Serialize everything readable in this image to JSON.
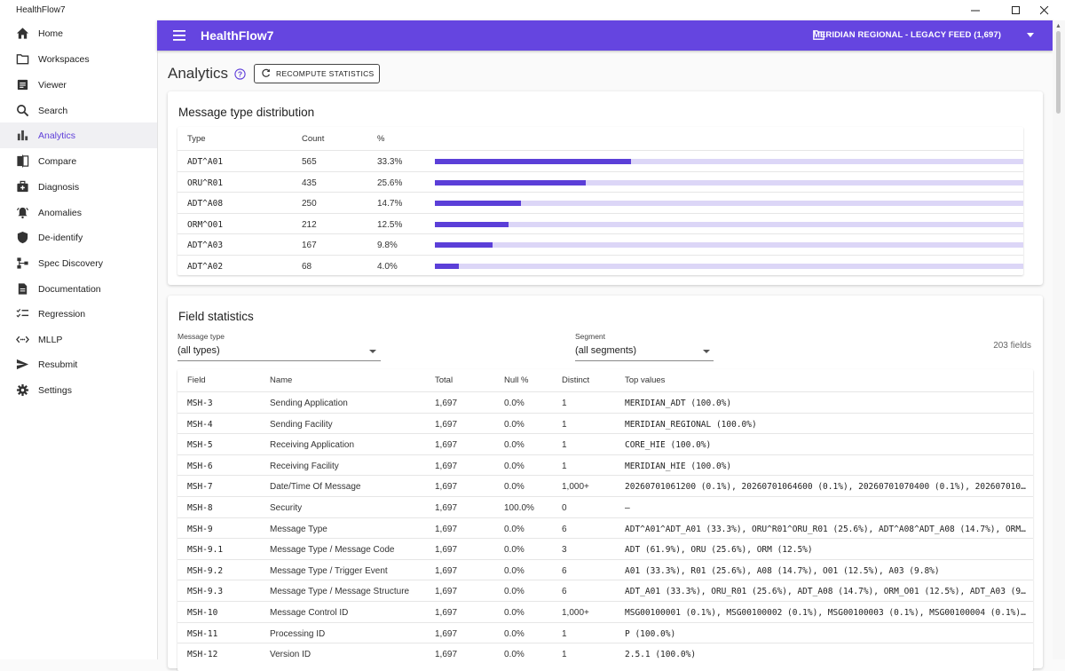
{
  "window": {
    "title": "HealthFlow7",
    "controls": [
      "minimize",
      "maximize",
      "close"
    ]
  },
  "sidebar": {
    "items": [
      {
        "label": "Home",
        "icon": "home-icon"
      },
      {
        "label": "Workspaces",
        "icon": "folder-icon"
      },
      {
        "label": "Viewer",
        "icon": "document-icon"
      },
      {
        "label": "Search",
        "icon": "search-icon"
      },
      {
        "label": "Analytics",
        "icon": "bar-chart-icon",
        "active": true
      },
      {
        "label": "Compare",
        "icon": "compare-icon"
      },
      {
        "label": "Diagnosis",
        "icon": "medical-kit-icon"
      },
      {
        "label": "Anomalies",
        "icon": "alarm-icon"
      },
      {
        "label": "De-identify",
        "icon": "shield-icon"
      },
      {
        "label": "Spec Discovery",
        "icon": "schema-icon"
      },
      {
        "label": "Documentation",
        "icon": "description-icon"
      },
      {
        "label": "Regression",
        "icon": "checklist-icon"
      },
      {
        "label": "MLLP",
        "icon": "code-arrows-icon"
      },
      {
        "label": "Resubmit",
        "icon": "send-icon"
      },
      {
        "label": "Settings",
        "icon": "gear-icon"
      }
    ]
  },
  "appbar": {
    "title": "HealthFlow7",
    "workspace": "MERIDIAN REGIONAL - LEGACY FEED (1,697)"
  },
  "page": {
    "title": "Analytics",
    "recompute_label": "RECOMPUTE STATISTICS"
  },
  "distribution": {
    "title": "Message type distribution",
    "headers": [
      "Type",
      "Count",
      "%"
    ],
    "rows": [
      {
        "type": "ADT^A01",
        "count": "565",
        "pct": "33.3%",
        "fraction": 0.333
      },
      {
        "type": "ORU^R01",
        "count": "435",
        "pct": "25.6%",
        "fraction": 0.256
      },
      {
        "type": "ADT^A08",
        "count": "250",
        "pct": "14.7%",
        "fraction": 0.147
      },
      {
        "type": "ORM^O01",
        "count": "212",
        "pct": "12.5%",
        "fraction": 0.125
      },
      {
        "type": "ADT^A03",
        "count": "167",
        "pct": "9.8%",
        "fraction": 0.098
      },
      {
        "type": "ADT^A02",
        "count": "68",
        "pct": "4.0%",
        "fraction": 0.04
      }
    ],
    "colors": {
      "fill": "#5b3fd8",
      "track": "#dcd6f7"
    }
  },
  "field_stats": {
    "title": "Field statistics",
    "message_type_label": "Message type",
    "message_type_value": "(all types)",
    "segment_label": "Segment",
    "segment_value": "(all segments)",
    "field_count": "203 fields",
    "headers": [
      "Field",
      "Name",
      "Total",
      "Null %",
      "Distinct",
      "Top values"
    ],
    "rows": [
      {
        "field": "MSH-3",
        "name": "Sending Application",
        "total": "1,697",
        "null": "0.0%",
        "distinct": "1",
        "top": "MERIDIAN_ADT (100.0%)"
      },
      {
        "field": "MSH-4",
        "name": "Sending Facility",
        "total": "1,697",
        "null": "0.0%",
        "distinct": "1",
        "top": "MERIDIAN_REGIONAL (100.0%)"
      },
      {
        "field": "MSH-5",
        "name": "Receiving Application",
        "total": "1,697",
        "null": "0.0%",
        "distinct": "1",
        "top": "CORE_HIE (100.0%)"
      },
      {
        "field": "MSH-6",
        "name": "Receiving Facility",
        "total": "1,697",
        "null": "0.0%",
        "distinct": "1",
        "top": "MERIDIAN_HIE (100.0%)"
      },
      {
        "field": "MSH-7",
        "name": "Date/Time Of Message",
        "total": "1,697",
        "null": "0.0%",
        "distinct": "1,000+",
        "top": "20260701061200 (0.1%), 20260701064600 (0.1%), 20260701070400 (0.1%), 2026070107…"
      },
      {
        "field": "MSH-8",
        "name": "Security",
        "total": "1,697",
        "null": "100.0%",
        "distinct": "0",
        "top": "—"
      },
      {
        "field": "MSH-9",
        "name": "Message Type",
        "total": "1,697",
        "null": "0.0%",
        "distinct": "6",
        "top": "ADT^A01^ADT_A01 (33.3%), ORU^R01^ORU_R01 (25.6%), ADT^A08^ADT_A08 (14.7%), ORM^…"
      },
      {
        "field": "MSH-9.1",
        "name": "Message Type / Message Code",
        "total": "1,697",
        "null": "0.0%",
        "distinct": "3",
        "top": "ADT (61.9%), ORU (25.6%), ORM (12.5%)"
      },
      {
        "field": "MSH-9.2",
        "name": "Message Type / Trigger Event",
        "total": "1,697",
        "null": "0.0%",
        "distinct": "6",
        "top": "A01 (33.3%), R01 (25.6%), A08 (14.7%), O01 (12.5%), A03 (9.8%)"
      },
      {
        "field": "MSH-9.3",
        "name": "Message Type / Message Structure",
        "total": "1,697",
        "null": "0.0%",
        "distinct": "6",
        "top": "ADT_A01 (33.3%), ORU_R01 (25.6%), ADT_A08 (14.7%), ORM_O01 (12.5%), ADT_A03 (9.…"
      },
      {
        "field": "MSH-10",
        "name": "Message Control ID",
        "total": "1,697",
        "null": "0.0%",
        "distinct": "1,000+",
        "top": "MSG00100001 (0.1%), MSG00100002 (0.1%), MSG00100003 (0.1%), MSG00100004 (0.1%),…"
      },
      {
        "field": "MSH-11",
        "name": "Processing ID",
        "total": "1,697",
        "null": "0.0%",
        "distinct": "1",
        "top": "P (100.0%)"
      },
      {
        "field": "MSH-12",
        "name": "Version ID",
        "total": "1,697",
        "null": "0.0%",
        "distinct": "1",
        "top": "2.5.1 (100.0%)"
      }
    ]
  },
  "colors": {
    "accent": "#6545e0",
    "active_nav": "#5e3ed9"
  }
}
